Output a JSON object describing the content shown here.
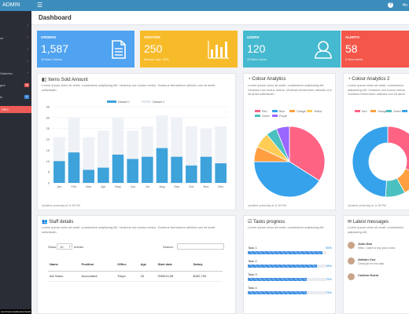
{
  "brand": "ADMIN",
  "topbar": {
    "help_icon": "question-icon",
    "right_text": "Ho"
  },
  "page_title": "Dashboard",
  "sidebar": {
    "items": [
      {
        "label": "",
        "chevron": "›"
      },
      {
        "label": "ce",
        "chevron": "›"
      },
      {
        "label": "",
        "chevron": "›"
      },
      {
        "label": "",
        "chevron": "›"
      },
      {
        "label": "Galleries",
        "chevron": "›"
      },
      {
        "label": "ges",
        "badge": "20",
        "badge_color": "#ef5b57"
      },
      {
        "label": "ls",
        "badge": "5",
        "badge_color": "#3b8de0"
      },
      {
        "label": "PRO",
        "chevron": "›",
        "active": true
      }
    ]
  },
  "stats": [
    {
      "title": "ORDERS",
      "value": "1,587",
      "sub": "15 New Orders",
      "color": "#4fa3f0",
      "icon": "document-icon"
    },
    {
      "title": "VISITORS",
      "value": "250",
      "sub": "Browse rate: 25%",
      "color": "#f7bb2a",
      "icon": "bar-chart-icon"
    },
    {
      "title": "USERS",
      "value": "120",
      "sub": "25 New Users",
      "color": "#45b9cf",
      "icon": "user-icon"
    },
    {
      "title": "ALERTS",
      "value": "58",
      "sub": "5 New Alerts",
      "color": "#f4564a",
      "icon": "bell-icon"
    }
  ],
  "items_sold": {
    "title": "Items Sold Amount",
    "desc": "Lorem ipsum dolor sit amet, consectetur adipiscing elit. Vivamus non luctus metus. Vivamus fermentum ultricies orci sit amet sollicitudin.",
    "footer": "Updated yesterday at 11:59 PM"
  },
  "colour_analytics": {
    "title": "Colour Analytics",
    "desc": "Lorem ipsum dolor sit amet, consectetur adipiscing elit. Vivamus non luctus metus. Vivamus fermentum ultricies orci sit amet sollicitudin.",
    "footer": "Updated yesterday at 11:59 PM"
  },
  "colour_analytics_2": {
    "title": "Colour Analytics 2",
    "desc": "Lorem ipsum dolor sit amet, consectetur adipiscing elit. Vivamus non luctus metus. Vivamus fermentum ultricies orci sit amet sollicitudin.",
    "footer": "Updated yesterday at 11:59 PM"
  },
  "chart_data": [
    {
      "type": "bar",
      "categories": [
        "Jan",
        "Feb",
        "Mar",
        "Apr",
        "May",
        "Jun",
        "Jul",
        "Aug",
        "Sep",
        "Oct",
        "Nov",
        "Dec"
      ],
      "series": [
        {
          "name": "Dataset 1",
          "values": [
            10,
            14,
            6,
            7,
            13,
            11,
            12,
            16,
            12,
            8,
            12,
            9
          ],
          "color": "#3ea2db"
        },
        {
          "name": "Dataset 2",
          "values": [
            21,
            30,
            21,
            24,
            30,
            24,
            26,
            31,
            30,
            26,
            25,
            26
          ],
          "color": "#eef1f6"
        }
      ],
      "y_ticks": [
        "0",
        "5",
        "10",
        "15",
        "20",
        "25",
        "30",
        "35"
      ],
      "ylim": [
        0,
        35
      ],
      "grid": true,
      "legend": "top-center"
    },
    {
      "type": "pie",
      "labels": [
        "Red",
        "Blue",
        "Orange",
        "Yellow",
        "Green",
        "Purple"
      ],
      "colors": [
        "#ff6384",
        "#36a2eb",
        "#ff9f40",
        "#ffcd56",
        "#4bc0c0",
        "#9966ff"
      ],
      "values": [
        34,
        41,
        7,
        7,
        5,
        6
      ]
    },
    {
      "type": "pie",
      "donut": true,
      "labels": [
        "Red",
        "Orange",
        "Green",
        "Blue"
      ],
      "colors": [
        "#ff6384",
        "#ff9f40",
        "#4bc0c0",
        "#36a2eb"
      ],
      "values": [
        31,
        11,
        9,
        49
      ]
    }
  ],
  "staff": {
    "title": "Staff details",
    "desc": "Lorem ipsum dolor sit amet, consectetur adipiscing elit. Vivamus non luctus metus. Vivamus fermentum ultricies orci sit amet sollicitudin.",
    "show_label": "Show",
    "show_value": "10",
    "entries_label": "entries",
    "search_label": "Search:",
    "columns": [
      "Name",
      "Position",
      "Office",
      "Age",
      "Start date",
      "Salary"
    ],
    "rows": [
      [
        "Airi Satou",
        "Accountant",
        "Tokyo",
        "33",
        "2008/11/28",
        "$162,700"
      ]
    ]
  },
  "tasks": {
    "title": "Tasks progress",
    "desc": "Lorem ipsum dolor sit amet, consectetur adipiscing elit.",
    "items": [
      {
        "label": "Task 1",
        "pct_text": "95%",
        "pct": 95
      },
      {
        "label": "Task 2",
        "pct_text": "88%",
        "pct": 88
      },
      {
        "label": "Task 3",
        "pct_text": "75%",
        "pct": 75
      },
      {
        "label": "Task 4",
        "pct_text": "75%",
        "pct": 75
      }
    ]
  },
  "messages": {
    "title": "Latest messages",
    "desc": "Lorem ipsum dolor sit amet, consectetur adipiscing elit.",
    "items": [
      {
        "name": "John Doe",
        "text": "Hello, I want to buy your produ"
      },
      {
        "name": "Ashton Cox",
        "text": "Great job for this task"
      },
      {
        "name": "Colleen Hurst",
        "text": ""
      }
    ]
  },
  "watermark": "www.freetemplatedownloads.net/more-free-html-templates.html"
}
